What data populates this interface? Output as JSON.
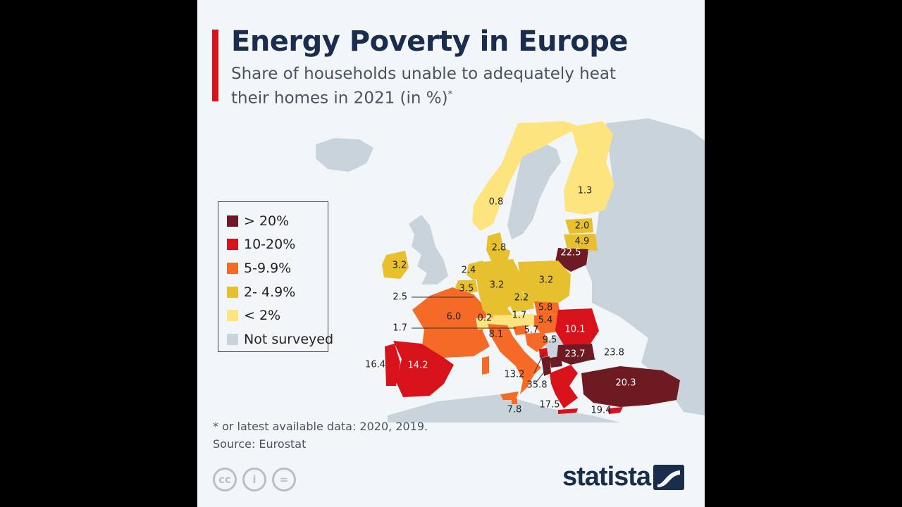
{
  "title": "Energy Poverty in Europe",
  "subtitle": "Share of households unable to adequately heat their homes in 2021 (in %)",
  "subtitle_marker": "*",
  "legend": [
    {
      "label": "> 20%",
      "color": "#6e1a22"
    },
    {
      "label": "10-20%",
      "color": "#d8121a"
    },
    {
      "label": "5-9.9%",
      "color": "#f46a26"
    },
    {
      "label": "2- 4.9%",
      "color": "#e6c02f"
    },
    {
      "label": "< 2%",
      "color": "#fde47f"
    },
    {
      "label": "Not surveyed",
      "color": "#c9d3dc"
    }
  ],
  "values": {
    "norway": "0.8",
    "finland": "1.3",
    "estonia": "2.0",
    "latvia": "4.9",
    "lithuania": "22.5",
    "denmark": "2.8",
    "ireland": "3.2",
    "netherlands": "2.4",
    "belgium": "3.5",
    "luxembourg": "2.5",
    "germany": "3.2",
    "poland": "3.2",
    "czechia": "2.2",
    "slovakia": "5.8",
    "austria": "1.7",
    "hungary": "5.4",
    "switzerland": "0.2",
    "slovenia": "5.7",
    "liechtenstein": "1.7",
    "france": "6.0",
    "italy": "8.1",
    "croatia": "9.5",
    "romania": "10.1",
    "bulgaria": "23.7",
    "north_macedonia": "23.8",
    "montenegro": "13.2",
    "albania": "35.8",
    "spain": "14.2",
    "portugal": "16.4",
    "turkey": "20.3",
    "malta": "7.8",
    "greece": "17.5",
    "cyprus": "19.4"
  },
  "footnote": "* or latest available data: 2020, 2019.",
  "source": "Source: Eurostat",
  "license_icons": [
    {
      "name": "cc-icon",
      "glyph": "cc"
    },
    {
      "name": "attribution-icon",
      "glyph": "i"
    },
    {
      "name": "no-derivatives-icon",
      "glyph": "="
    }
  ],
  "brand": "statista"
}
